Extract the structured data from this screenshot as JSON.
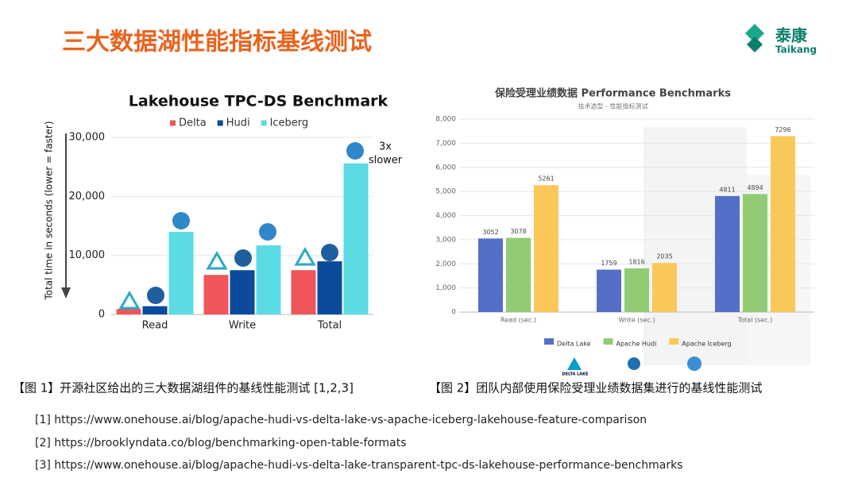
{
  "header": {
    "title": "三大数据湖性能指标基线测试",
    "logo_cn": "泰康",
    "logo_en": "Taikang"
  },
  "chart_data": [
    {
      "type": "bar",
      "title": "Lakehouse TPC-DS Benchmark",
      "y_label": "Total time in seconds (lower = faster)",
      "categories": [
        "Read",
        "Write",
        "Total"
      ],
      "series": [
        {
          "name": "Delta",
          "color": "#f0555a",
          "values": [
            900,
            6700,
            7500
          ]
        },
        {
          "name": "Hudi",
          "color": "#0b4a9c",
          "values": [
            1400,
            7500,
            9000
          ]
        },
        {
          "name": "Iceberg",
          "color": "#5cdbe3",
          "values": [
            14000,
            11700,
            25600
          ]
        }
      ],
      "ylim": [
        0,
        30000
      ],
      "yticks": [
        0,
        {
          "value": 10000,
          "label": "10,000"
        },
        {
          "value": 20000,
          "label": "20,000"
        },
        {
          "value": 30000,
          "label": "30,000"
        }
      ],
      "grid": true,
      "legend": "top",
      "annotation": [
        "3x",
        "slower"
      ]
    },
    {
      "type": "bar",
      "title": "保险受理业绩数据 Performance Benchmarks",
      "subtitle": "技术选型 - 性能指标测试",
      "categories": [
        "Read (sec.)",
        "Write (sec.)",
        "Total (sec.)"
      ],
      "series": [
        {
          "name": "Delta Lake",
          "color": "#5470c6",
          "values": [
            3052,
            1759,
            4811
          ]
        },
        {
          "name": "Apache Hudi",
          "color": "#91cc75",
          "values": [
            3078,
            1816,
            4894
          ]
        },
        {
          "name": "Apache Iceberg",
          "color": "#fac858",
          "values": [
            5261,
            2035,
            7296
          ]
        }
      ],
      "ylim": [
        0,
        8000
      ],
      "yticks": [
        0,
        {
          "value": 1000,
          "label": "1,000"
        },
        {
          "value": 2000,
          "label": "2,000"
        },
        {
          "value": 3000,
          "label": "3,000"
        },
        {
          "value": 4000,
          "label": "4,000"
        },
        {
          "value": 5000,
          "label": "5,000"
        },
        {
          "value": 6000,
          "label": "6,000"
        },
        {
          "value": 7000,
          "label": "7,000"
        },
        {
          "value": 8000,
          "label": "8,000"
        }
      ],
      "grid": true,
      "legend": "bottom",
      "show_values": true,
      "icon_label": "DELTA LAKE"
    }
  ],
  "captions": [
    "【图 1】开源社区给出的三大数据湖组件的基线性能测试 [1,2,3]",
    "【图 2】团队内部使用保险受理业绩数据集进行的基线性能测试"
  ],
  "references": [
    "[1] https://www.onehouse.ai/blog/apache-hudi-vs-delta-lake-vs-apache-iceberg-lakehouse-feature-comparison",
    "[2] https://brooklyndata.co/blog/benchmarking-open-table-formats",
    "[3]  https://www.onehouse.ai/blog/apache-hudi-vs-delta-lake-transparent-tpc-ds-lakehouse-performance-benchmarks"
  ]
}
